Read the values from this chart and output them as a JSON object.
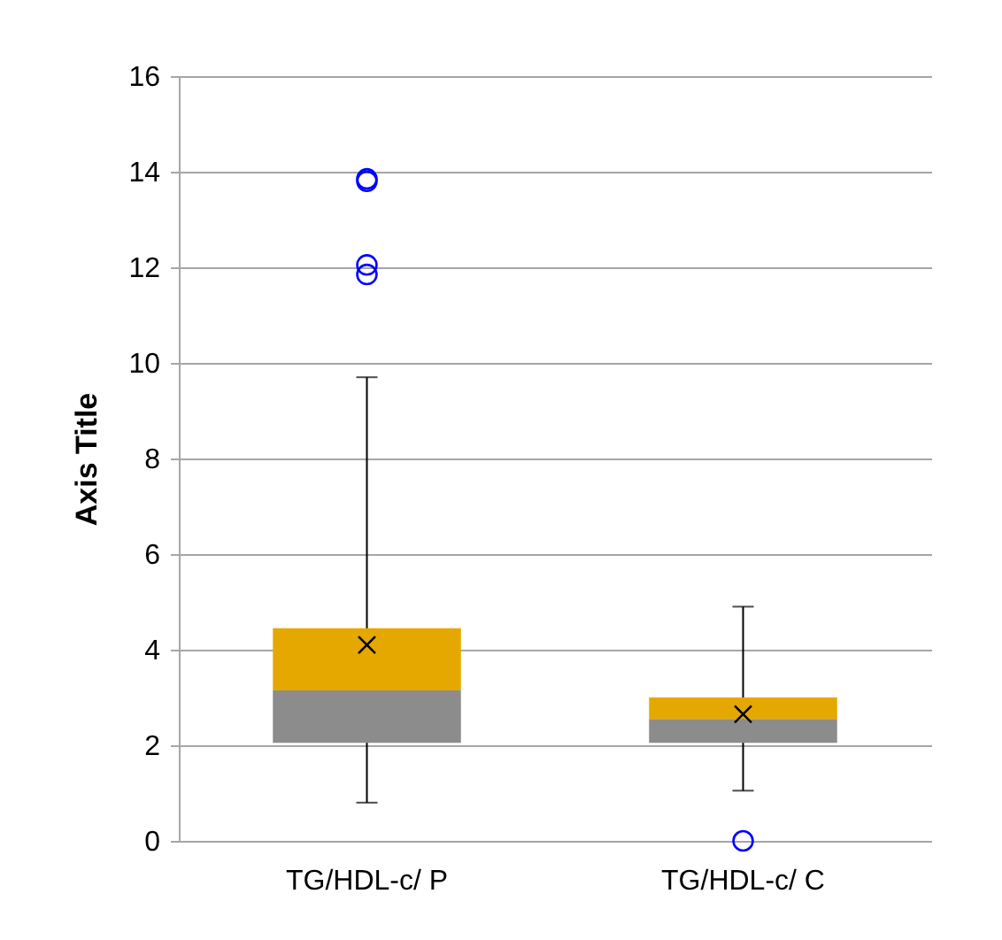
{
  "chart_data": {
    "type": "box",
    "ylabel": "Axis Title",
    "categories": [
      "TG/HDL-c/ P",
      "TG/HDL-c/ C"
    ],
    "series": [
      {
        "color": "#e5a800",
        "colors": [
          "#8c8c8c",
          "#8c8c8c"
        ],
        "boxes": [
          {
            "low": 0.8,
            "q1": 2.05,
            "median": 3.15,
            "q3": 4.45,
            "high": 9.7,
            "mean": 4.1,
            "outliers": [
              11.85,
              12.05,
              13.8,
              13.85
            ]
          },
          {
            "low": 1.05,
            "q1": 2.05,
            "median": 2.55,
            "q3": 3.0,
            "high": 4.9,
            "mean": 2.65,
            "outliers": [
              0
            ]
          }
        ]
      }
    ],
    "ylim": [
      0,
      16
    ],
    "yticks": [
      0,
      2,
      4,
      6,
      8,
      10,
      12,
      14,
      16
    ],
    "grid": "y"
  }
}
